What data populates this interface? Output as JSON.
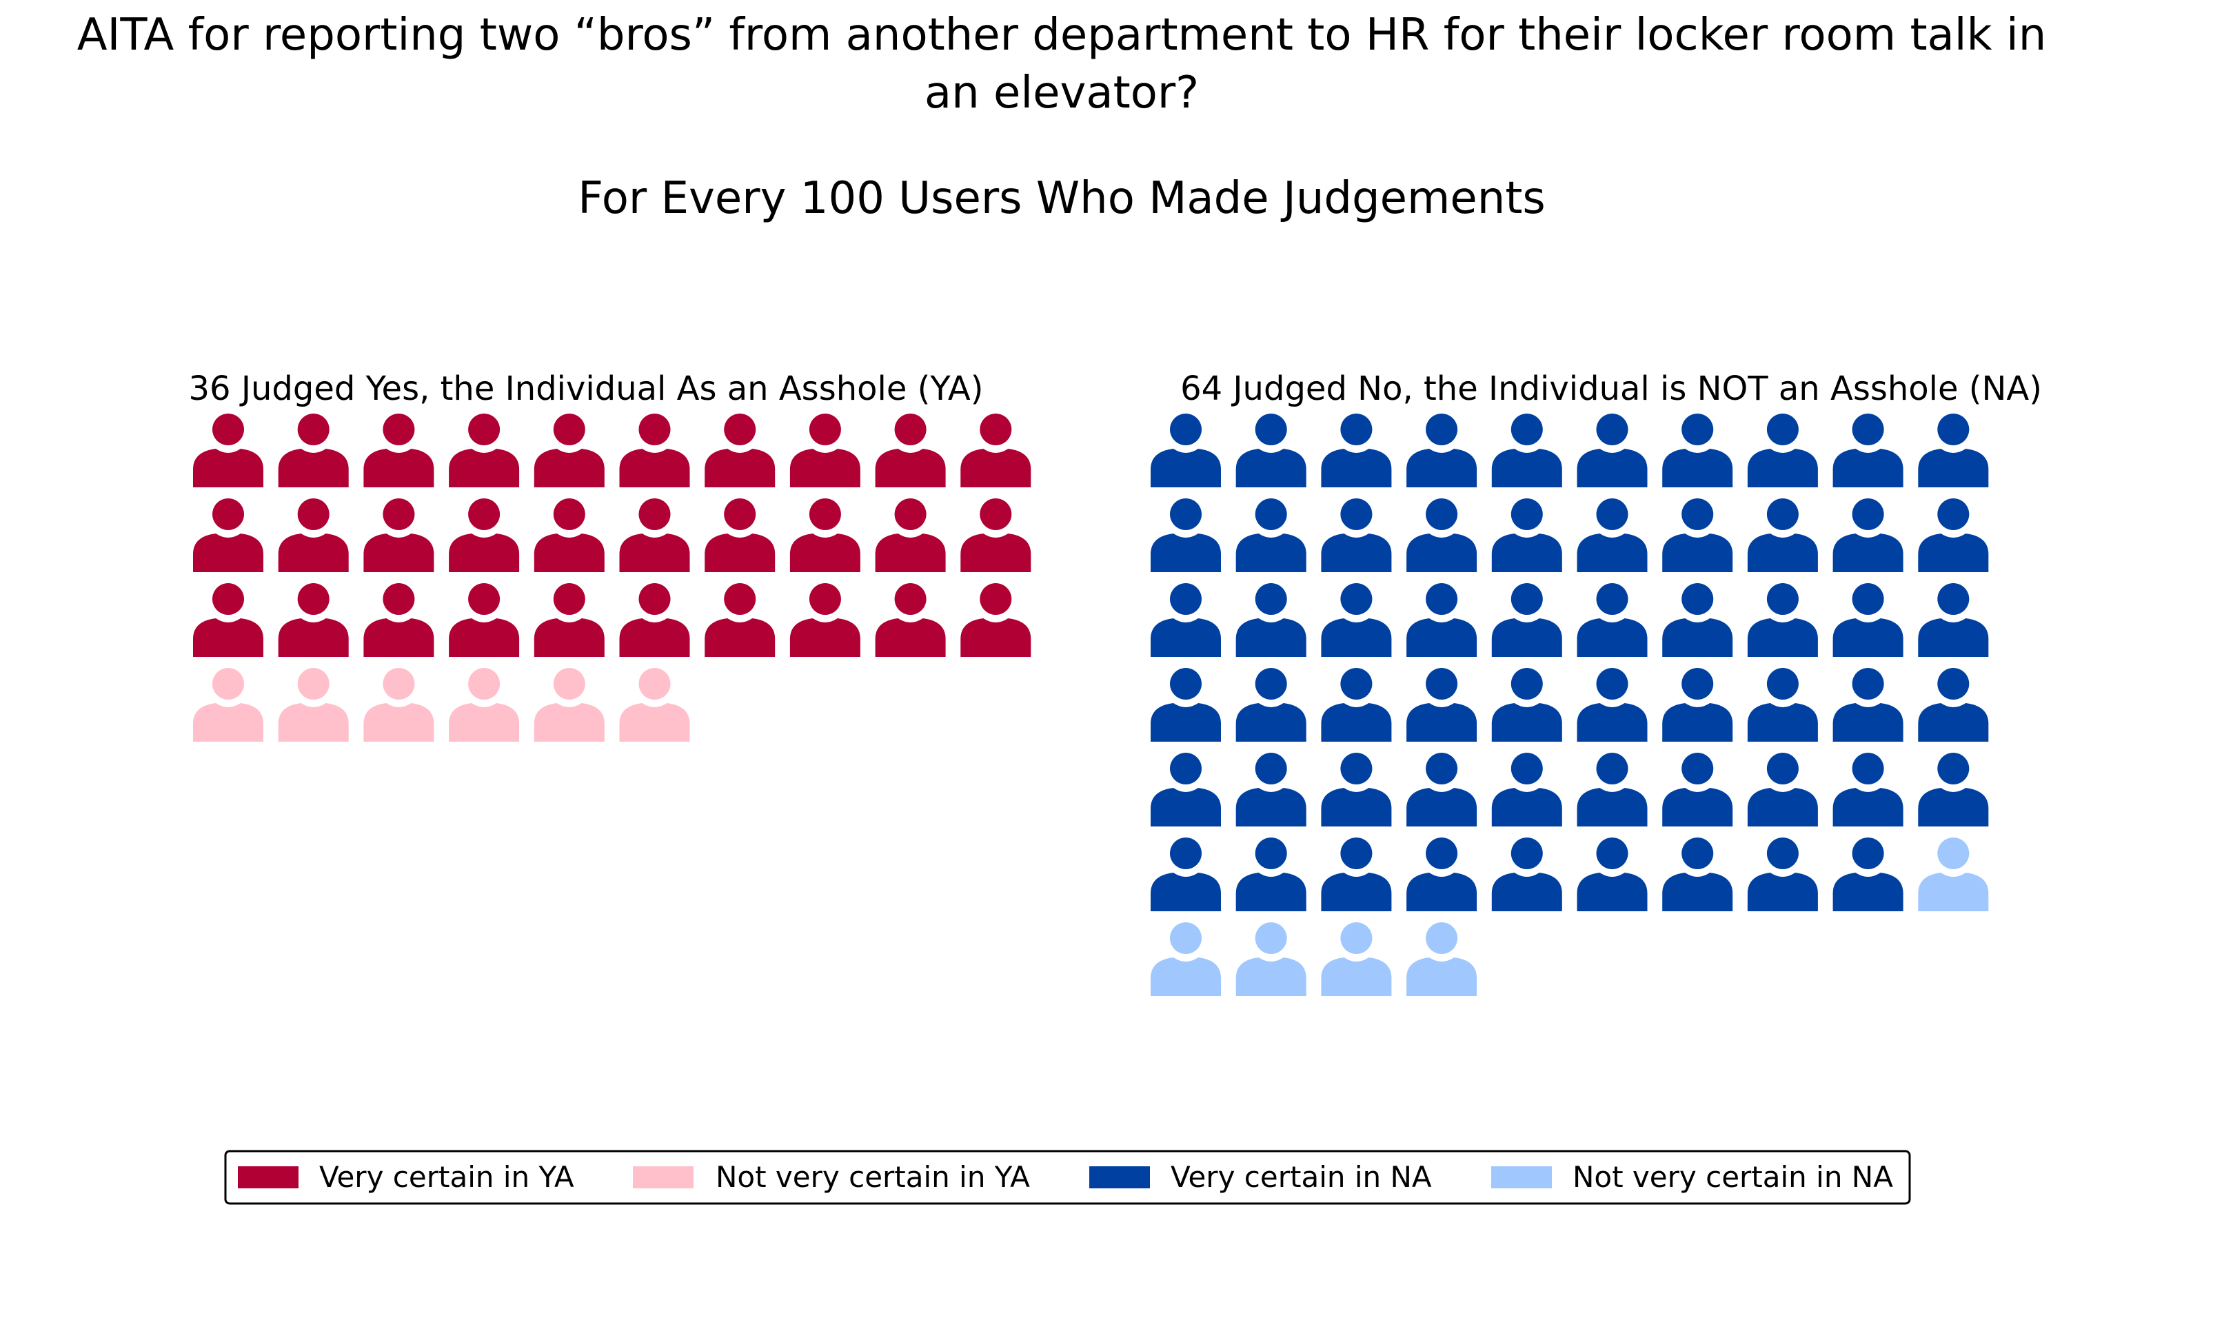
{
  "chart_data": {
    "type": "pictogram",
    "title": "AITA for reporting two “bros” from another department to HR for their locker room talk in",
    "title_line2": "an elevator?",
    "subtitle": "For Every 100 Users Who Made Judgements",
    "panels": [
      {
        "label": "36 Judged Yes, the Individual As an Asshole (YA)",
        "total": 36,
        "groups": [
          {
            "name": "Very certain in YA",
            "count": 30,
            "color": "#b10034"
          },
          {
            "name": "Not very certain in YA",
            "count": 6,
            "color": "#ffc0cb"
          }
        ]
      },
      {
        "label": "64 Judged No, the Individual is NOT an Asshole (NA)",
        "total": 64,
        "groups": [
          {
            "name": "Very certain in NA",
            "count": 59,
            "color": "#0040a0"
          },
          {
            "name": "Not very certain in NA",
            "count": 5,
            "color": "#a0c8ff"
          }
        ]
      }
    ],
    "icons_per_row": 10,
    "icon": "person-icon",
    "legend": {
      "placement": "bottom-center",
      "items": [
        {
          "label": "Very certain in YA",
          "color": "#b10034"
        },
        {
          "label": "Not very certain in YA",
          "color": "#ffc0cb"
        },
        {
          "label": "Very certain in NA",
          "color": "#0040a0"
        },
        {
          "label": "Not very certain in NA",
          "color": "#a0c8ff"
        }
      ]
    }
  }
}
